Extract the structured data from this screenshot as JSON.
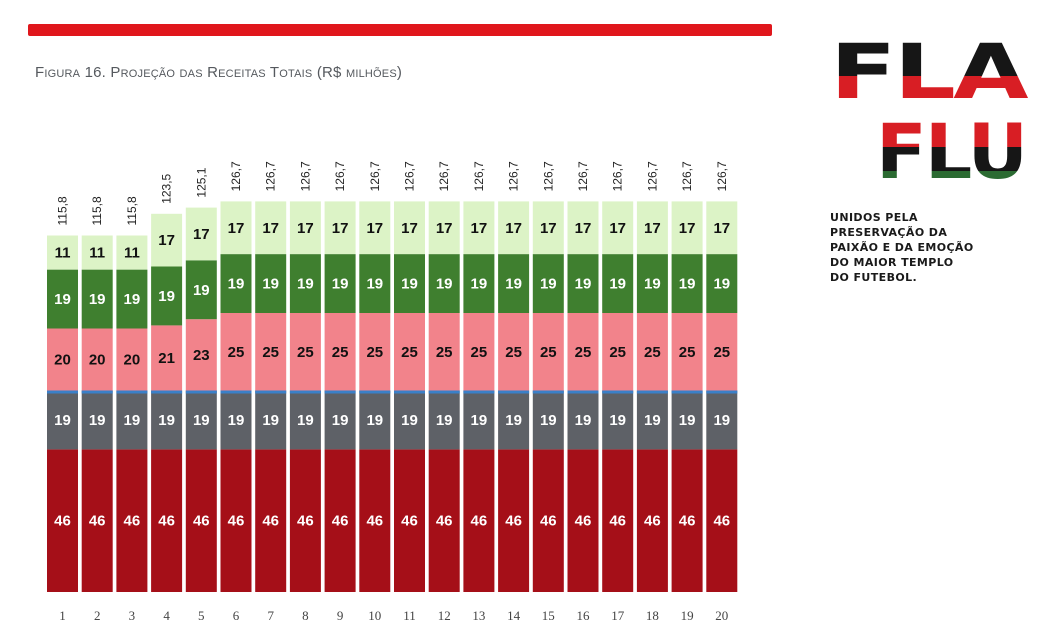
{
  "figure_title": "Figura 16. Projeção das Receitas Totais (R$ milhões)",
  "logo": {
    "line1": "FLA",
    "line2": "FLU"
  },
  "slogan_lines": [
    "UNIDOS PELA",
    "PRESERVAÇÃO DA",
    "PAIXÃO E DA EMOÇÃO",
    "DO MAIOR TEMPLO",
    "DO FUTEBOL."
  ],
  "colors": {
    "accent_red": "#e0161c",
    "seg_dark_red": "#a50f18",
    "seg_gray": "#5e6167",
    "seg_blue_line": "#3a80c8",
    "seg_pink": "#f2838b",
    "seg_green": "#3f7f2f",
    "seg_light_green": "#dcf3c6",
    "logo_black": "#161616",
    "logo_red": "#d81e24",
    "logo_green": "#2b6b32"
  },
  "chart_data": {
    "type": "bar",
    "stacked": true,
    "title": "Figura 16. Projeção das Receitas Totais (R$ milhões)",
    "categories": [
      "1",
      "2",
      "3",
      "4",
      "5",
      "6",
      "7",
      "8",
      "9",
      "10",
      "11",
      "12",
      "13",
      "14",
      "15",
      "16",
      "17",
      "18",
      "19",
      "20"
    ],
    "series": [
      {
        "name": "segment-1",
        "color": "#a50f18",
        "label_color": "#ffffff",
        "values": [
          46,
          46,
          46,
          46,
          46,
          46,
          46,
          46,
          46,
          46,
          46,
          46,
          46,
          46,
          46,
          46,
          46,
          46,
          46,
          46
        ]
      },
      {
        "name": "segment-2",
        "color": "#5e6167",
        "label_color": "#ffffff",
        "values": [
          19,
          19,
          19,
          19,
          19,
          19,
          19,
          19,
          19,
          19,
          19,
          19,
          19,
          19,
          19,
          19,
          19,
          19,
          19,
          19
        ]
      },
      {
        "name": "segment-3",
        "color": "#f2838b",
        "label_color": "#111111",
        "values": [
          20,
          20,
          20,
          21,
          23,
          25,
          25,
          25,
          25,
          25,
          25,
          25,
          25,
          25,
          25,
          25,
          25,
          25,
          25,
          25
        ]
      },
      {
        "name": "segment-4",
        "color": "#3f7f2f",
        "label_color": "#ffffff",
        "values": [
          19,
          19,
          19,
          19,
          19,
          19,
          19,
          19,
          19,
          19,
          19,
          19,
          19,
          19,
          19,
          19,
          19,
          19,
          19,
          19
        ]
      },
      {
        "name": "segment-5",
        "color": "#dcf3c6",
        "label_color": "#111111",
        "values": [
          11,
          11,
          11,
          17,
          17,
          17,
          17,
          17,
          17,
          17,
          17,
          17,
          17,
          17,
          17,
          17,
          17,
          17,
          17,
          17
        ]
      }
    ],
    "totals": [
      "115,8",
      "115,8",
      "115,8",
      "123,5",
      "125,1",
      "126,7",
      "126,7",
      "126,7",
      "126,7",
      "126,7",
      "126,7",
      "126,7",
      "126,7",
      "126,7",
      "126,7",
      "126,7",
      "126,7",
      "126,7",
      "126,7",
      "126,7"
    ],
    "xlabel": "",
    "ylabel": "",
    "ylim": [
      0,
      126.7
    ],
    "grid": false,
    "legend": "none"
  }
}
